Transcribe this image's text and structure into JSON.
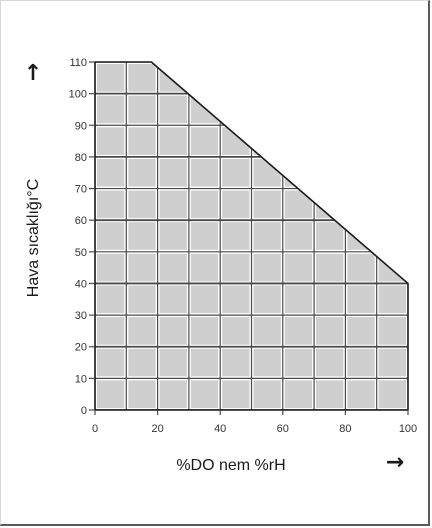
{
  "chart_data": {
    "type": "area",
    "title": "",
    "xlabel": "%DO nem %rH",
    "ylabel": "Hava sıcaklığı°C",
    "xlim": [
      0,
      100
    ],
    "ylim": [
      0,
      110
    ],
    "xticks": [
      0,
      20,
      40,
      60,
      80,
      100
    ],
    "yticks": [
      0,
      10,
      20,
      30,
      40,
      50,
      60,
      70,
      80,
      90,
      100,
      110
    ],
    "grid": true,
    "legend": "none",
    "series": [
      {
        "x": [
          0,
          18,
          100,
          100,
          0
        ],
        "y": [
          110,
          110,
          40,
          0,
          0
        ]
      }
    ],
    "colors": {
      "cell_fill": "#cfcfcf",
      "grid_line": "#4a4a4a",
      "boundary_line": "#1a1a1a"
    },
    "x_arrow": "→",
    "y_arrow": "↑"
  }
}
